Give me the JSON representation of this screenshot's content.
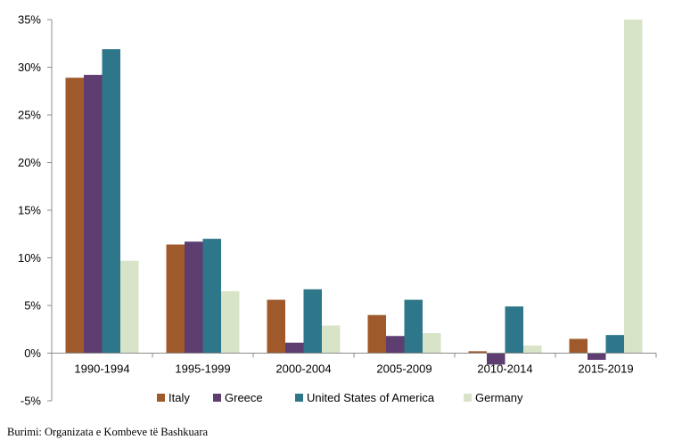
{
  "chart_data": {
    "type": "bar",
    "categories": [
      "1990-1994",
      "1995-1999",
      "2000-2004",
      "2005-2009",
      "2010-2014",
      "2015-2019"
    ],
    "series": [
      {
        "name": "Italy",
        "color": "#A0592A",
        "values": [
          28.9,
          11.4,
          5.6,
          4.0,
          0.2,
          1.5
        ]
      },
      {
        "name": "Greece",
        "color": "#5E3D70",
        "values": [
          29.2,
          11.7,
          1.1,
          1.8,
          -1.2,
          -0.7
        ]
      },
      {
        "name": "United States of America",
        "color": "#2E7689",
        "values": [
          31.9,
          12.0,
          6.7,
          5.6,
          4.9,
          1.9
        ]
      },
      {
        "name": "Germany",
        "color": "#D8E4C8",
        "values": [
          9.7,
          6.5,
          2.9,
          2.1,
          0.8,
          35.0
        ]
      }
    ],
    "yticks": [
      "35%",
      "30%",
      "25%",
      "20%",
      "15%",
      "10%",
      "5%",
      "0%",
      "-5%"
    ],
    "ylim": [
      -5,
      35
    ],
    "grid": false,
    "legend_position": "bottom"
  },
  "source_note": "Burimi: Organizata e Kombeve të Bashkuara"
}
